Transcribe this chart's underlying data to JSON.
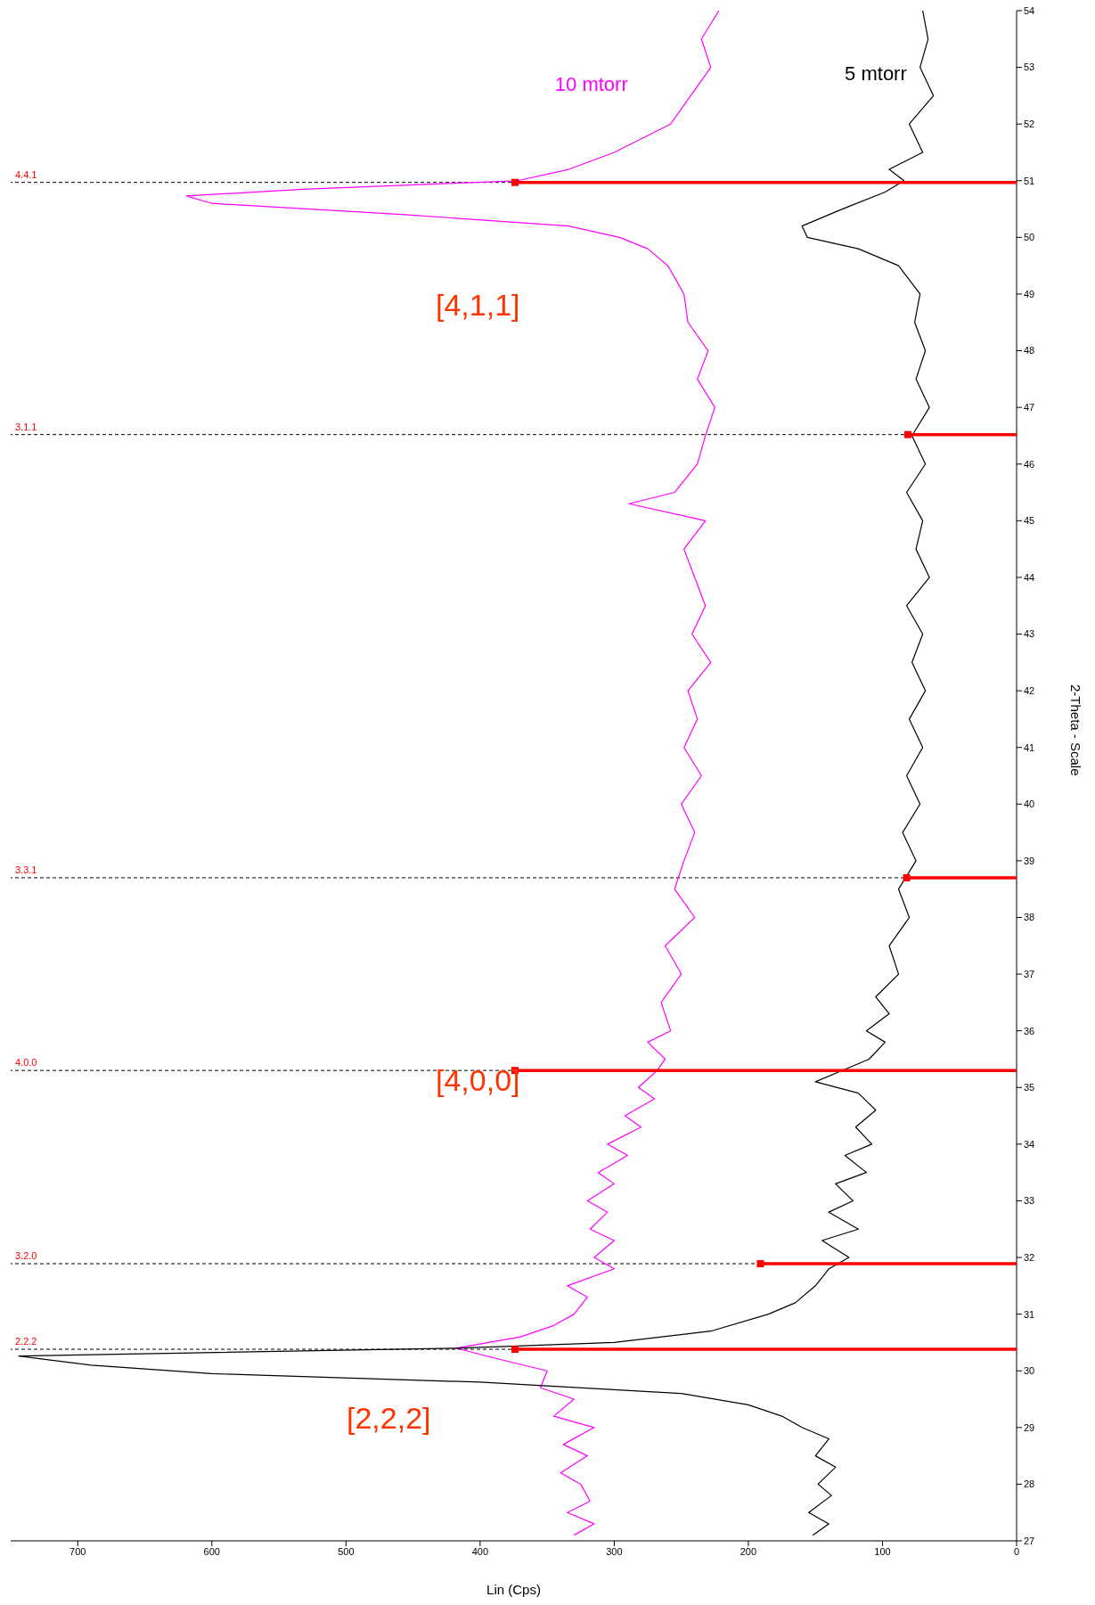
{
  "chart_data": {
    "type": "line",
    "orientation": "horizontal",
    "xlabel": "Lin (Cps)",
    "ylabel": "2-Theta - Scale",
    "ylim": [
      27,
      54
    ],
    "yticks": [
      27,
      28,
      29,
      30,
      31,
      32,
      33,
      34,
      35,
      36,
      37,
      38,
      39,
      40,
      41,
      42,
      43,
      44,
      45,
      46,
      47,
      48,
      49,
      50,
      51,
      52,
      53,
      54
    ],
    "xlim": [
      750,
      0
    ],
    "xticks": [
      0,
      100,
      200,
      300,
      400,
      500,
      600,
      700
    ],
    "grid": false,
    "legend": false,
    "marker": "none",
    "series": [
      {
        "name": "10 mtorr",
        "color": "#ff00ff",
        "x": [
          27.1,
          27.3,
          27.5,
          27.7,
          28,
          28.2,
          28.5,
          28.7,
          29,
          29.2,
          29.5,
          29.7,
          30,
          30.2,
          30.4,
          30.6,
          30.8,
          31,
          31.3,
          31.5,
          31.8,
          32,
          32.3,
          32.5,
          32.8,
          33,
          33.3,
          33.5,
          33.8,
          34,
          34.3,
          34.5,
          34.8,
          35,
          35.3,
          35.5,
          35.8,
          36,
          36.5,
          37,
          37.5,
          38,
          38.5,
          39,
          39.5,
          40,
          40.5,
          41,
          41.5,
          42,
          42.5,
          43,
          43.5,
          44,
          44.5,
          45,
          45.3,
          45.5,
          46,
          46.5,
          47,
          47.5,
          48,
          48.5,
          49,
          49.5,
          49.8,
          50,
          50.2,
          50.4,
          50.6,
          50.73,
          50.85,
          51,
          51.2,
          51.5,
          52,
          52.5,
          53,
          53.5,
          54
        ],
        "values": [
          330,
          315,
          335,
          318,
          325,
          340,
          320,
          338,
          315,
          345,
          330,
          355,
          350,
          385,
          418,
          370,
          345,
          330,
          320,
          335,
          300,
          315,
          300,
          318,
          305,
          320,
          300,
          312,
          290,
          305,
          280,
          292,
          270,
          282,
          268,
          262,
          275,
          258,
          265,
          250,
          262,
          240,
          255,
          248,
          240,
          250,
          235,
          248,
          238,
          245,
          228,
          242,
          232,
          240,
          248,
          232,
          289,
          255,
          238,
          232,
          225,
          238,
          230,
          245,
          248,
          260,
          275,
          296,
          334,
          456,
          600,
          619,
          532,
          372,
          334,
          300,
          258,
          243,
          228,
          235,
          222
        ]
      },
      {
        "name": "5 mtorr",
        "color": "#000000",
        "x": [
          27.1,
          27.3,
          27.5,
          27.8,
          28,
          28.3,
          28.5,
          28.8,
          29,
          29.2,
          29.4,
          29.6,
          29.8,
          29.95,
          30.1,
          30.26,
          30.4,
          30.5,
          30.7,
          31,
          31.2,
          31.5,
          31.8,
          32,
          32.3,
          32.5,
          32.8,
          33,
          33.3,
          33.5,
          33.8,
          34,
          34.3,
          34.6,
          34.9,
          35.1,
          35.3,
          35.5,
          35.8,
          36,
          36.3,
          36.6,
          37,
          37.5,
          38,
          38.5,
          39,
          39.5,
          40,
          40.5,
          41,
          41.5,
          42,
          42.5,
          43,
          43.5,
          44,
          44.5,
          45,
          45.5,
          46,
          46.5,
          47,
          47.5,
          48,
          48.5,
          49,
          49.5,
          49.8,
          50,
          50.2,
          50.5,
          50.8,
          51,
          51.2,
          51.5,
          52,
          52.5,
          53,
          53.5,
          54
        ],
        "values": [
          152,
          140,
          155,
          138,
          148,
          135,
          150,
          140,
          160,
          175,
          200,
          250,
          400,
          600,
          690,
          744,
          418,
          300,
          228,
          185,
          165,
          150,
          140,
          125,
          145,
          118,
          140,
          122,
          135,
          112,
          128,
          108,
          120,
          105,
          118,
          150,
          130,
          110,
          98,
          112,
          95,
          105,
          88,
          95,
          80,
          88,
          75,
          85,
          72,
          82,
          70,
          80,
          68,
          78,
          70,
          82,
          65,
          75,
          70,
          82,
          68,
          78,
          65,
          75,
          68,
          76,
          72,
          88,
          118,
          156,
          160,
          130,
          98,
          84,
          95,
          70,
          80,
          62,
          72,
          66,
          70
        ]
      },
      {
        "type": "lollipop",
        "color": "#ff0000",
        "marker": "square",
        "x": [
          30.38,
          31.89,
          35.3,
          38.7,
          46.52,
          50.97
        ],
        "values": [
          374,
          191,
          374,
          82,
          81,
          374
        ]
      }
    ],
    "ref_lines": [
      {
        "axis": "y",
        "value": 30.38,
        "label": "2.2.2",
        "color": "#000000",
        "line_style": "dashed"
      },
      {
        "axis": "y",
        "value": 31.89,
        "label": "3.2.0",
        "color": "#000000",
        "line_style": "dashed"
      },
      {
        "axis": "y",
        "value": 35.3,
        "label": "4.0.0",
        "color": "#000000",
        "line_style": "dashed"
      },
      {
        "axis": "y",
        "value": 38.7,
        "label": "3.3.1",
        "color": "#000000",
        "line_style": "dashed"
      },
      {
        "axis": "y",
        "value": 46.52,
        "label": "3.1.1",
        "color": "#000000",
        "line_style": "dashed"
      },
      {
        "axis": "y",
        "value": 50.97,
        "label": "4.4.1",
        "color": "#000000",
        "line_style": "dashed"
      }
    ],
    "annotations": [
      "[2,2,2]",
      "[4,0,0]",
      "[4,1,1]"
    ]
  }
}
